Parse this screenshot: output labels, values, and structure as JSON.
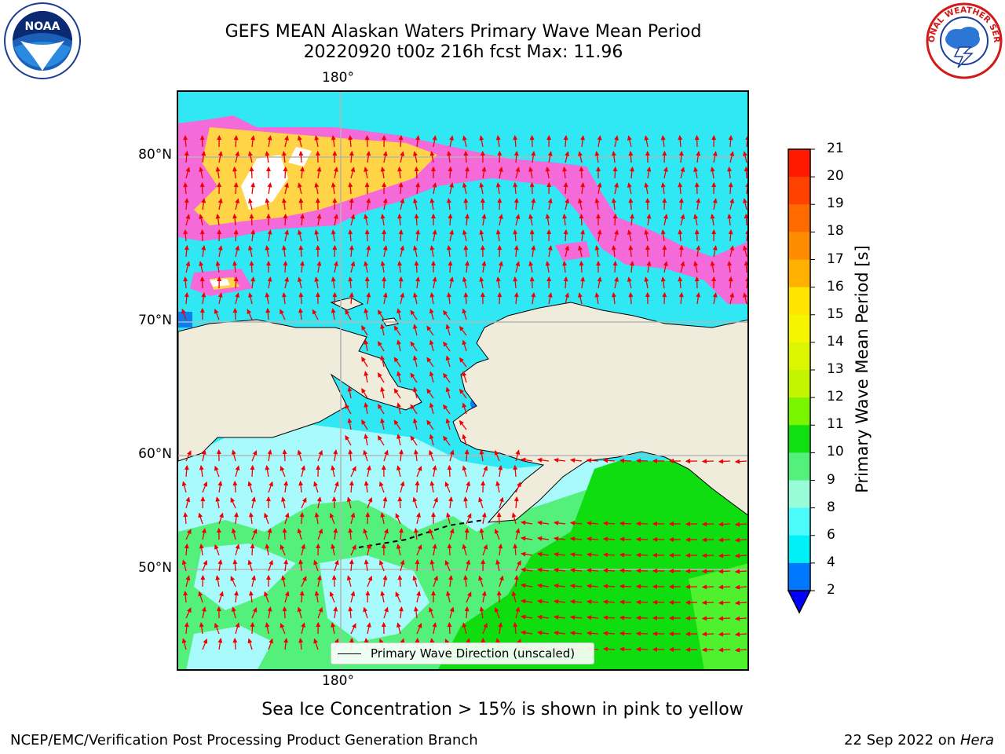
{
  "title": {
    "line1": "GEFS MEAN Alaskan Waters Primary Wave Mean Period",
    "line2": "20220920 t00z 216h fcst   Max: 11.96"
  },
  "logos": {
    "noaa_text": "NOAA",
    "nws_text": "NATIONAL WEATHER SERVICE"
  },
  "map": {
    "lon_label_top": "180°",
    "lon_label_bottom": "180°",
    "lat_labels": [
      "80°N",
      "70°N",
      "60°N",
      "50°N"
    ],
    "legend_label": "Primary Wave Direction (unscaled)",
    "colors": {
      "land": "#efecdc",
      "cyan": "#2fe8f4",
      "light_cyan": "#a9fafc",
      "light_green": "#54f07c",
      "green": "#10dd10",
      "ice_pink": "#f36ad8",
      "ice_yellow": "#ffd447",
      "arrow": "#f00000"
    }
  },
  "colorbar": {
    "label": "Primary Wave Mean Period [s]",
    "ticks": [
      "21",
      "20",
      "19",
      "18",
      "17",
      "16",
      "15",
      "14",
      "13",
      "12",
      "11",
      "10",
      "9",
      "8",
      "6",
      "4",
      "2"
    ],
    "colors": [
      "#ff1a00",
      "#ff4200",
      "#ff6a00",
      "#ff8c00",
      "#ffb000",
      "#ffe500",
      "#f5f500",
      "#dcf500",
      "#c4f500",
      "#7af500",
      "#10e010",
      "#54f07c",
      "#98fcd8",
      "#4bfafa",
      "#00f0f8",
      "#0077ff"
    ],
    "extend_color": "#0000ff"
  },
  "note": "Sea Ice Concentration > 15% is shown in pink to yellow",
  "footer": {
    "left": "NCEP/EMC/Verification Post Processing Product Generation Branch",
    "right_date": "22 Sep 2022 on ",
    "right_host": "Hera"
  }
}
